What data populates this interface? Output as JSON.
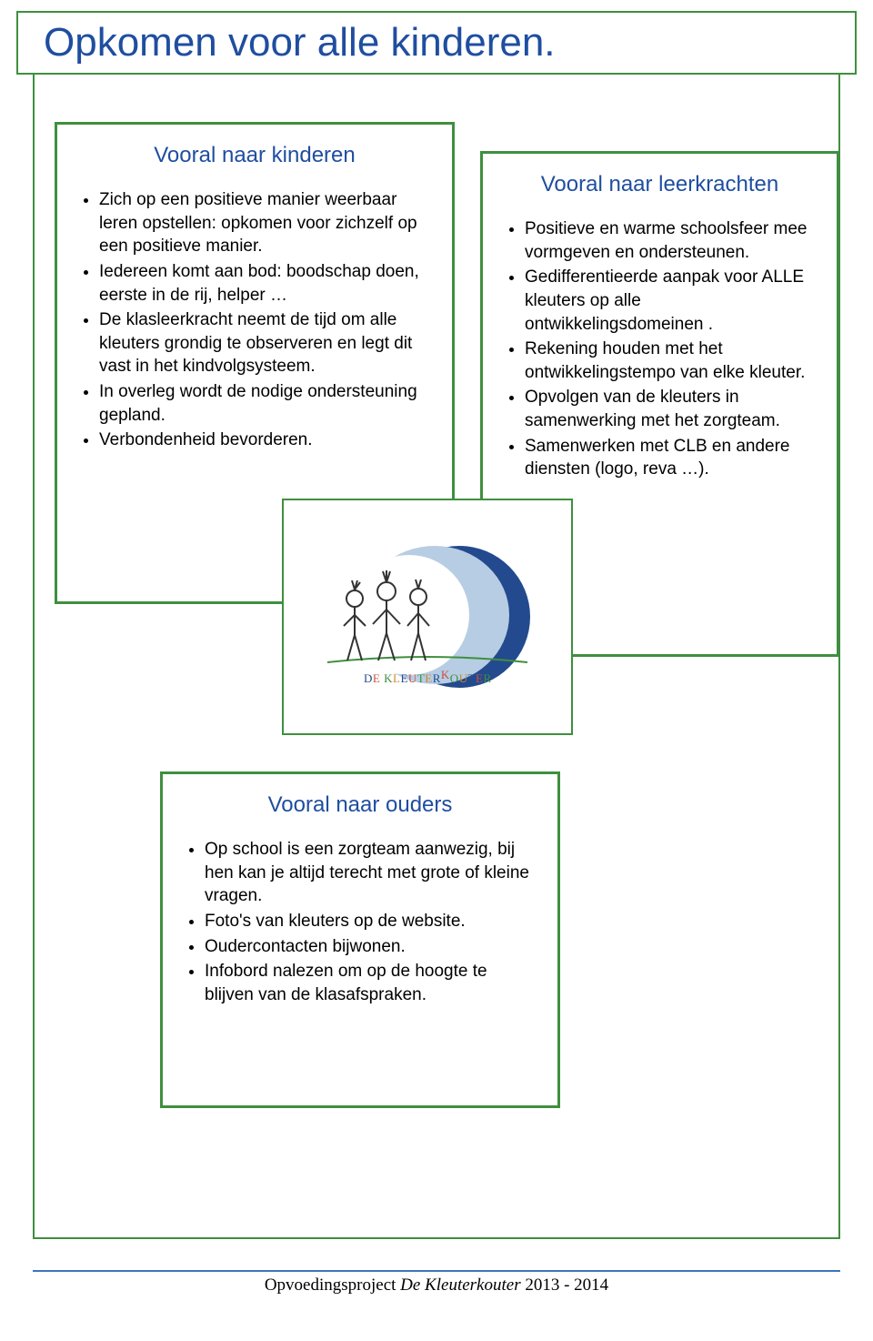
{
  "colors": {
    "border_green": "#3f8f3f",
    "title_blue": "#1f4ea0",
    "footer_blue": "#3f74b8",
    "moon_dark": "#234a8e",
    "moon_light": "#b7cde4",
    "text_black": "#000000",
    "bg_white": "#ffffff"
  },
  "title": "Opkomen voor alle kinderen.",
  "box_kinderen": {
    "heading": "Vooral naar kinderen",
    "items": [
      "Zich op een positieve manier weerbaar leren opstellen: opkomen voor zichzelf op een positieve manier.",
      "Iedereen komt aan bod: boodschap doen, eerste in de rij, helper …",
      "De klasleerkracht neemt de tijd om alle kleuters grondig te observeren en legt dit vast in het kindvolgsysteem.",
      "In overleg wordt de nodige ondersteuning gepland.",
      "Verbondenheid bevorderen."
    ]
  },
  "box_leerkrachten": {
    "heading": "Vooral naar leerkrachten",
    "items": [
      "Positieve en warme schoolsfeer mee vormgeven en ondersteunen.",
      "Gedifferentieerde aanpak voor ALLE kleuters op alle ontwikkelingsdomeinen .",
      "Rekening houden met het ontwikkelingstempo van elke kleuter.",
      "Opvolgen van de kleuters in samenwerking met het zorgteam.",
      "Samenwerken met CLB en andere diensten (logo, reva …)."
    ]
  },
  "box_ouders": {
    "heading": "Vooral naar ouders",
    "items": [
      "Op school is een zorgteam aanwezig, bij hen kan je altijd terecht met grote of kleine vragen.",
      "Foto's van kleuters op de website.",
      "Oudercontacten bijwonen.",
      "Infobord nalezen om op de hoogte te blijven van de klasafspraken."
    ]
  },
  "logo": {
    "name": "DE KLEUTERKOUTER",
    "letters": [
      {
        "t": "D",
        "c": "#234a8e"
      },
      {
        "t": "E",
        "c": "#c94f3f"
      },
      {
        "t": " ",
        "c": "#000"
      },
      {
        "t": "K",
        "c": "#3f8f3f"
      },
      {
        "t": "L",
        "c": "#d08a2a"
      },
      {
        "t": "E",
        "c": "#234a8e"
      },
      {
        "t": "U",
        "c": "#c94f3f"
      },
      {
        "t": "T",
        "c": "#3f8f3f"
      },
      {
        "t": "E",
        "c": "#d08a2a"
      },
      {
        "t": "R",
        "c": "#234a8e"
      },
      {
        "t": "K",
        "c": "#c94f3f"
      },
      {
        "t": "O",
        "c": "#3f8f3f"
      },
      {
        "t": "U",
        "c": "#d08a2a"
      },
      {
        "t": "T",
        "c": "#234a8e"
      },
      {
        "t": "E",
        "c": "#c94f3f"
      },
      {
        "t": "R",
        "c": "#3f8f3f"
      }
    ]
  },
  "footer": {
    "prefix": "Opvoedingsproject  ",
    "title": "De Kleuterkouter",
    "suffix": "  2013 - 2014"
  }
}
